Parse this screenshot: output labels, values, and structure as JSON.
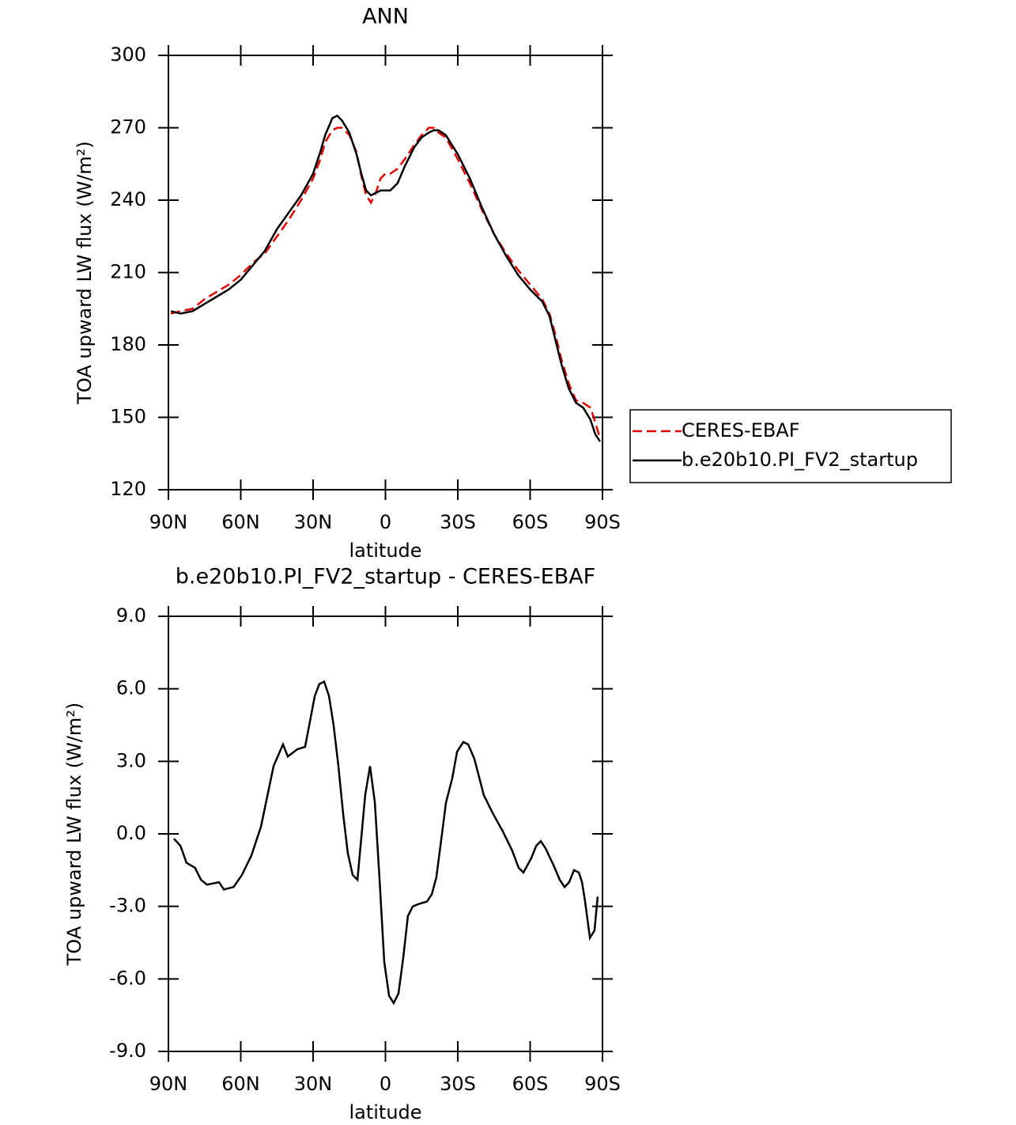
{
  "chart_data": [
    {
      "type": "line",
      "title": "ANN",
      "xlabel": "latitude",
      "ylabel": "TOA upward LW flux (W/m²)",
      "x": [
        89,
        85,
        80,
        75,
        70,
        65,
        60,
        55,
        50,
        45,
        40,
        35,
        30,
        27,
        25,
        22,
        20,
        18,
        15,
        12,
        10,
        8,
        6,
        4,
        2,
        0,
        -2,
        -5,
        -8,
        -12,
        -15,
        -18,
        -20,
        -22,
        -25,
        -30,
        -35,
        -40,
        -45,
        -50,
        -55,
        -60,
        -65,
        -68,
        -70,
        -73,
        -76,
        -79,
        -82,
        -85,
        -87,
        -89
      ],
      "series": [
        {
          "name": "CERES-EBAF",
          "color": "#e00000",
          "line_style": "dashed",
          "values": [
            193,
            194,
            195,
            199,
            202,
            205,
            209,
            214,
            218,
            225,
            232,
            240,
            249,
            257,
            264,
            269,
            270,
            270,
            267,
            260,
            250,
            242,
            239,
            243,
            249,
            251,
            251,
            253,
            257,
            263,
            267,
            270,
            270,
            268,
            266,
            257,
            247,
            236,
            226,
            218,
            211,
            205,
            199,
            193,
            186,
            174,
            164,
            157,
            156,
            154,
            148,
            141
          ]
        },
        {
          "name": "b.e20b10.PI_FV2_startup",
          "color": "#000000",
          "line_style": "solid",
          "values": [
            194,
            193,
            194,
            197,
            200,
            203,
            207,
            213,
            219,
            228,
            235,
            242,
            251,
            260,
            267,
            274,
            275,
            273,
            268,
            259,
            251,
            244,
            242,
            243,
            244,
            244,
            244,
            247,
            254,
            262,
            266,
            268,
            269,
            269,
            267,
            259,
            249,
            237,
            226,
            217,
            209,
            203,
            198,
            192,
            184,
            172,
            162,
            156,
            154,
            149,
            143,
            140
          ]
        }
      ],
      "xlim": [
        90,
        -90
      ],
      "xticks": [
        {
          "value": 90,
          "label": "90N"
        },
        {
          "value": 60,
          "label": "60N"
        },
        {
          "value": 30,
          "label": "30N"
        },
        0,
        {
          "value": -30,
          "label": "30S"
        },
        {
          "value": -60,
          "label": "60S"
        },
        {
          "value": -90,
          "label": "90S"
        }
      ],
      "ylim": [
        120,
        300
      ],
      "yticks": [
        120,
        150,
        180,
        210,
        240,
        270,
        300
      ],
      "legend": "right"
    },
    {
      "type": "line",
      "title": "b.e20b10.PI_FV2_startup - CERES-EBAF",
      "xlabel": "latitude",
      "ylabel": "TOA upward LW flux (W/m²)",
      "x": [
        87.7,
        85,
        82.5,
        79,
        76.5,
        74,
        69,
        67,
        63,
        59.5,
        55.6,
        51.6,
        46.4,
        42.5,
        40.5,
        36.6,
        33.3,
        29.3,
        27.4,
        25.4,
        23.4,
        21.5,
        19.5,
        17.5,
        15.6,
        13.6,
        11.6,
        8.4,
        6.4,
        4.4,
        2.5,
        0.5,
        -1.5,
        -3.4,
        -5.4,
        -7.4,
        -9.3,
        -11.3,
        -13.9,
        -17.2,
        -19.2,
        -21.1,
        -25.1,
        -27.7,
        -29.7,
        -32.3,
        -34.3,
        -36.9,
        -40.8,
        -44.8,
        -48.7,
        -52.6,
        -55.2,
        -57.2,
        -60.5,
        -62.5,
        -64.4,
        -66.4,
        -69.7,
        -72.3,
        -74.3,
        -76.2,
        -78.2,
        -80.2,
        -81.5,
        -82.8,
        -84.8,
        -86.7,
        -88
      ],
      "values": [
        -0.2,
        -0.5,
        -1.2,
        -1.4,
        -1.9,
        -2.1,
        -2,
        -2.3,
        -2.2,
        -1.7,
        -0.9,
        0.3,
        2.8,
        3.7,
        3.2,
        3.5,
        3.6,
        5.7,
        6.2,
        6.3,
        5.7,
        4.5,
        2.8,
        0.8,
        -0.8,
        -1.7,
        -1.9,
        1.6,
        2.8,
        1.3,
        -1.8,
        -5.3,
        -6.7,
        -7,
        -6.6,
        -5.1,
        -3.4,
        -3,
        -2.9,
        -2.8,
        -2.5,
        -1.8,
        1.3,
        2.3,
        3.4,
        3.8,
        3.7,
        3.1,
        1.6,
        0.8,
        0.1,
        -0.7,
        -1.4,
        -1.6,
        -1,
        -0.5,
        -0.3,
        -0.6,
        -1.3,
        -1.9,
        -2.2,
        -2,
        -1.5,
        -1.6,
        -2,
        -2.8,
        -4.3,
        -4,
        -2.6
      ],
      "color": "#000000",
      "xlim": [
        90,
        -90
      ],
      "xticks": [
        {
          "value": 90,
          "label": "90N"
        },
        {
          "value": 60,
          "label": "60N"
        },
        {
          "value": 30,
          "label": "30N"
        },
        0,
        {
          "value": -30,
          "label": "30S"
        },
        {
          "value": -60,
          "label": "60S"
        },
        {
          "value": -90,
          "label": "90S"
        }
      ],
      "ylim": [
        -9,
        9
      ],
      "yticks": [
        {
          "value": -9,
          "label": "-9.0"
        },
        {
          "value": -6,
          "label": "-6.0"
        },
        {
          "value": -3,
          "label": "-3.0"
        },
        {
          "value": 0,
          "label": "0.0"
        },
        {
          "value": 3,
          "label": "3.0"
        },
        {
          "value": 6,
          "label": "6.0"
        },
        {
          "value": 9,
          "label": "9.0"
        }
      ]
    }
  ]
}
